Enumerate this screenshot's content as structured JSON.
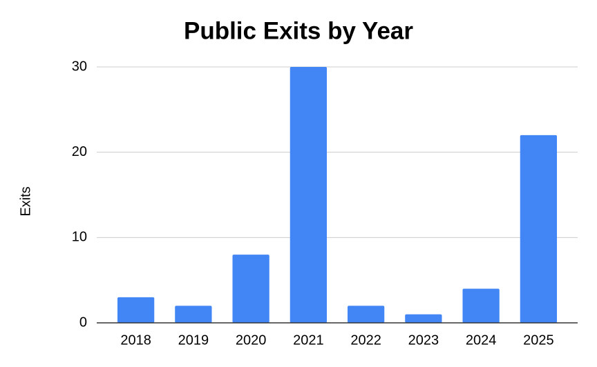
{
  "chart_data": {
    "type": "bar",
    "title": "Public Exits by Year",
    "y_label": "Exits",
    "categories": [
      "2018",
      "2019",
      "2020",
      "2021",
      "2022",
      "2023",
      "2024",
      "2025"
    ],
    "values": [
      3,
      2,
      8,
      30,
      2,
      1,
      4,
      22
    ],
    "color": "#4285f4",
    "ylim": [
      0,
      30
    ],
    "yticks": [
      0,
      10,
      20,
      30
    ],
    "grid": true
  }
}
